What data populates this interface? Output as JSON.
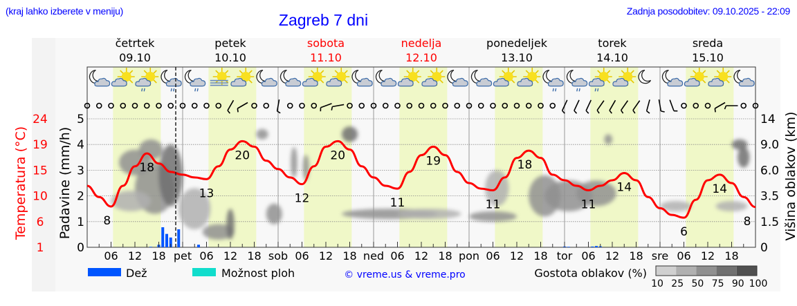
{
  "header": {
    "hint": "(kraj lahko izberete v meniju)",
    "title": "Zagreb 7 dni",
    "updated": "Zadnja posodobitev: 09.10.2025 - 22:09"
  },
  "days": [
    {
      "name": "četrtek",
      "date": "09.10",
      "abbr": "",
      "weekend": false
    },
    {
      "name": "petek",
      "date": "10.10",
      "abbr": "pet",
      "weekend": false
    },
    {
      "name": "sobota",
      "date": "11.10",
      "abbr": "sob",
      "weekend": true
    },
    {
      "name": "nedelja",
      "date": "12.10",
      "abbr": "ned",
      "weekend": true
    },
    {
      "name": "ponedeljek",
      "date": "13.10",
      "abbr": "pon",
      "weekend": false
    },
    {
      "name": "torek",
      "date": "14.10",
      "abbr": "tor",
      "weekend": false
    },
    {
      "name": "sreda",
      "date": "15.10",
      "abbr": "sre",
      "weekend": false
    }
  ],
  "colors": {
    "temperature": "#ff0000",
    "rain": "#0055ff",
    "showers": "#11ddcc",
    "daylight": "#f0f8c8",
    "night": "#f8f8f8",
    "weekend_day": "#ff0000",
    "link": "#0000ff"
  },
  "legend": {
    "rain": "Dež",
    "showers": "Možnost ploh",
    "copyright": "© vreme.us & vreme.pro",
    "cloud_density": "Gostota oblakov (%)",
    "cloud_levels": [
      "10",
      "25",
      "50",
      "75",
      "90",
      "100"
    ],
    "cloud_colors": [
      "#d0d0d0",
      "#b0b0b0",
      "#909090",
      "#707070",
      "#505050"
    ]
  },
  "chart_data": {
    "type": "line",
    "title": "Zagreb 7 dni",
    "x_unit": "hours from 09.10 00:00",
    "x_ticks": [
      "06",
      "12",
      "18"
    ],
    "now_marker_hour": 22.15,
    "left_axis_precip": {
      "label": "Padavine (mm/h)",
      "ticks": [
        "0",
        "1",
        "2",
        "3",
        "4",
        "5"
      ],
      "range": [
        0,
        5
      ]
    },
    "left_axis_temp": {
      "label": "Temperatura (°C)",
      "ticks": [
        "1",
        "6",
        "10",
        "15",
        "19",
        "24"
      ],
      "range": [
        1,
        24
      ]
    },
    "right_axis_cloud": {
      "label": "Višina oblakov (km)",
      "ticks": [
        "0",
        "1.5",
        "3.5",
        "6.0",
        "9.0",
        "14"
      ]
    },
    "grid": true,
    "daylight_hours": [
      6.5,
      18.5
    ],
    "temperature": {
      "hours": [
        0,
        3,
        6,
        9,
        12,
        15,
        18,
        21,
        24,
        27,
        30,
        33,
        36,
        39,
        42,
        45,
        48,
        51,
        54,
        57,
        60,
        63,
        66,
        69,
        72,
        75,
        78,
        81,
        84,
        87,
        90,
        93,
        96,
        99,
        102,
        105,
        108,
        111,
        114,
        117,
        120,
        123,
        126,
        129,
        132,
        135,
        138,
        141,
        144,
        147,
        150,
        153,
        156,
        159,
        162,
        165,
        168
      ],
      "values": [
        12,
        10,
        8.3,
        12,
        15.5,
        17.8,
        16,
        14.5,
        14,
        13.5,
        13.2,
        15.5,
        18.5,
        20,
        19,
        16.5,
        15,
        13.5,
        12.3,
        15.5,
        19,
        20,
        18.5,
        15.5,
        13.5,
        12,
        11.5,
        14.5,
        17.5,
        19,
        17.5,
        14.5,
        12.5,
        11.5,
        11.2,
        13.5,
        17,
        18.3,
        17,
        14,
        13,
        12,
        11.2,
        12,
        13,
        14.3,
        13,
        10,
        8,
        6.8,
        6.3,
        9.5,
        13,
        14,
        12.5,
        10,
        8.2
      ]
    },
    "temperature_labels": [
      {
        "hour": 5,
        "text": "8"
      },
      {
        "hour": 15,
        "text": "18"
      },
      {
        "hour": 30,
        "text": "13"
      },
      {
        "hour": 39,
        "text": "20"
      },
      {
        "hour": 54,
        "text": "12"
      },
      {
        "hour": 63,
        "text": "20"
      },
      {
        "hour": 78,
        "text": "11"
      },
      {
        "hour": 87,
        "text": "19"
      },
      {
        "hour": 102,
        "text": "11"
      },
      {
        "hour": 110,
        "text": "18"
      },
      {
        "hour": 126,
        "text": "11"
      },
      {
        "hour": 135,
        "text": "14"
      },
      {
        "hour": 150,
        "text": "6"
      },
      {
        "hour": 159,
        "text": "14"
      },
      {
        "hour": 168,
        "text": "8"
      }
    ],
    "rain_mm_h": [
      [
        16,
        0.02
      ],
      [
        18,
        0.1
      ],
      [
        19,
        0.78
      ],
      [
        20,
        0.52
      ],
      [
        21,
        0.38
      ],
      [
        23,
        0.7
      ],
      [
        28,
        0.1
      ],
      [
        120,
        0.03
      ],
      [
        121,
        0.02
      ],
      [
        127,
        0.03
      ],
      [
        128,
        0.05
      ],
      [
        129,
        0.04
      ]
    ],
    "cloud_blobs": [
      [
        12,
        3.3,
        4,
        0.5,
        50
      ],
      [
        16,
        3.8,
        3,
        0.4,
        60
      ],
      [
        17,
        2.3,
        5,
        1.0,
        60
      ],
      [
        21,
        2.8,
        3,
        1.2,
        75
      ],
      [
        11,
        1.8,
        5,
        0.4,
        25
      ],
      [
        27,
        1.5,
        4,
        0.8,
        40
      ],
      [
        33,
        0.6,
        4,
        0.3,
        50
      ],
      [
        36,
        0.9,
        1,
        0.6,
        75
      ],
      [
        44,
        4.4,
        1.5,
        0.2,
        50
      ],
      [
        47,
        1.3,
        2,
        0.4,
        50
      ],
      [
        52,
        3.3,
        0.8,
        0.6,
        50
      ],
      [
        55,
        3.1,
        0.8,
        0.5,
        50
      ],
      [
        66,
        4.4,
        2,
        0.3,
        75
      ],
      [
        76,
        1.3,
        12,
        0.2,
        50
      ],
      [
        86,
        1.3,
        8,
        0.2,
        25
      ],
      [
        102,
        1.2,
        6,
        0.2,
        50
      ],
      [
        103,
        2.3,
        3,
        0.7,
        40
      ],
      [
        115,
        2.0,
        4,
        0.8,
        50
      ],
      [
        121,
        2.0,
        6,
        0.6,
        60
      ],
      [
        128,
        2.1,
        5,
        0.5,
        60
      ],
      [
        131,
        4.2,
        1,
        0.2,
        60
      ],
      [
        148,
        1.6,
        4,
        0.2,
        40
      ],
      [
        162,
        1.6,
        4,
        0.2,
        40
      ],
      [
        164,
        4.0,
        2,
        0.2,
        75
      ],
      [
        165,
        3.5,
        1.5,
        0.4,
        75
      ]
    ],
    "weather_icons": [
      "moon-cloud",
      "sun-cloud",
      "sun-cloud-rain",
      "moon-cloud-rain",
      "moon-cloud-rain",
      "sun-fog",
      "sun-cloud",
      "moon-cloud",
      "moon-cloud",
      "sun-cloud",
      "sun-cloud",
      "moon-cloud",
      "moon-cloud",
      "sun-cloud",
      "sun-cloud",
      "moon-cloud",
      "moon-cloud",
      "sun-cloud",
      "sun-cloud",
      "moon-cloud-rain",
      "moon-cloud-rain",
      "sun-cloud-rain",
      "sun-cloud",
      "moon",
      "moon-cloud",
      "sun-cloud",
      "sun-cloud",
      "moon-cloud"
    ],
    "wind": [
      "calm",
      "calm",
      "calm",
      "calm",
      "calm",
      "calm",
      "calm",
      "calm",
      "calm",
      "calm",
      "calm",
      "calm",
      "barb:60",
      "barb:30",
      "calm",
      "calm",
      "barb:80",
      "calm",
      "calm",
      "calm",
      "barb:20",
      "barb:10",
      "calm",
      "calm",
      "calm",
      "calm",
      "calm",
      "calm",
      "calm",
      "calm",
      "calm",
      "calm",
      "calm",
      "calm",
      "calm",
      "calm",
      "calm",
      "calm",
      "calm",
      "calm",
      "barb:65",
      "barb:65",
      "barb:65",
      "barb:55",
      "barb:60",
      "barb:55",
      "barb:55",
      "barb:75",
      "barb:100",
      "barb:110",
      "calm",
      "calm",
      "calm",
      "barb:30",
      "barb:0",
      "calm",
      "calm"
    ]
  }
}
